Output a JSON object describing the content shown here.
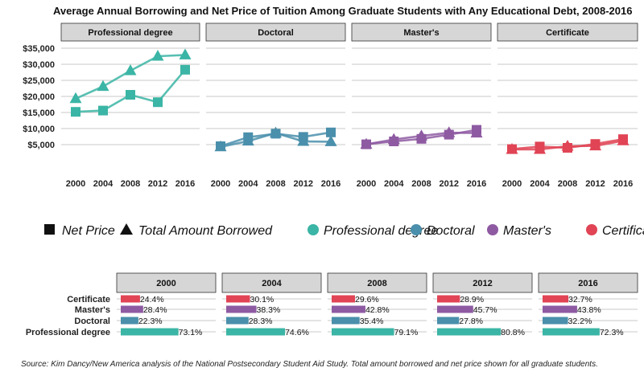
{
  "chart_data": {
    "type": "line",
    "title": "Average Annual Borrowing and Net Price of Tuition Among Graduate Students with Any Educational Debt, 2008-2016",
    "caption": "Source: Kim Dancy/New America analysis of the National Postsecondary Student Aid Study. Total amount borrowed and net price shown for all graduate students.",
    "years": [
      2000,
      2004,
      2008,
      2012,
      2016
    ],
    "y_ticks": [
      5000,
      10000,
      15000,
      20000,
      25000,
      30000,
      35000
    ],
    "y_tick_labels": [
      "$5,000",
      "$10,000",
      "$15,000",
      "$20,000",
      "$25,000",
      "$30,000",
      "$35,000"
    ],
    "ylim": [
      0,
      37000
    ],
    "measures": [
      {
        "name": "Net Price",
        "marker": "square"
      },
      {
        "name": "Total Amount Borrowed",
        "marker": "triangle"
      }
    ],
    "panels": [
      {
        "name": "Professional degree",
        "color": "#3bb5a5",
        "net_price": [
          15200,
          15600,
          20500,
          18200,
          28300
        ],
        "total_borrowed": [
          19300,
          23100,
          28000,
          32500,
          32900
        ]
      },
      {
        "name": "Doctoral",
        "color": "#4a8fab",
        "net_price": [
          4500,
          7300,
          8400,
          7400,
          8800
        ],
        "total_borrowed": [
          4300,
          6100,
          8600,
          6000,
          5900
        ]
      },
      {
        "name": "Master's",
        "color": "#8e5aa2",
        "net_price": [
          5100,
          6000,
          6800,
          8100,
          9600
        ],
        "total_borrowed": [
          5100,
          6600,
          7700,
          8700,
          8600
        ]
      },
      {
        "name": "Certificate",
        "color": "#e04455",
        "net_price": [
          3600,
          4400,
          4000,
          5200,
          6700
        ],
        "total_borrowed": [
          3500,
          3500,
          4500,
          4600,
          6200
        ]
      }
    ],
    "bar_chart": {
      "type": "bar",
      "categories": [
        "Certificate",
        "Master's",
        "Doctoral",
        "Professional degree"
      ],
      "years": [
        "2000",
        "2004",
        "2008",
        "2012",
        "2016"
      ],
      "values": {
        "2000": [
          24.4,
          28.4,
          22.3,
          73.1
        ],
        "2004": [
          30.1,
          38.3,
          28.3,
          74.6
        ],
        "2008": [
          29.6,
          42.8,
          35.4,
          79.1
        ],
        "2012": [
          28.9,
          45.7,
          27.8,
          80.8
        ],
        "2016": [
          32.7,
          43.8,
          32.2,
          72.3
        ]
      },
      "labels": {
        "2000": [
          "24.4%",
          "28.4%",
          "22.3%",
          "73.1%"
        ],
        "2004": [
          "30.1%",
          "38.3%",
          "28.3%",
          "74.6%"
        ],
        "2008": [
          "29.6%",
          "42.8%",
          "35.4%",
          "79.1%"
        ],
        "2012": [
          "28.9%",
          "45.7%",
          "27.8%",
          "80.8%"
        ],
        "2016": [
          "32.7%",
          "43.8%",
          "32.2%",
          "72.3%"
        ]
      },
      "colors": {
        "Certificate": "#e04455",
        "Master's": "#8e5aa2",
        "Doctoral": "#4a8fab",
        "Professional degree": "#3bb5a5"
      },
      "xlim": [
        0,
        100
      ]
    }
  }
}
